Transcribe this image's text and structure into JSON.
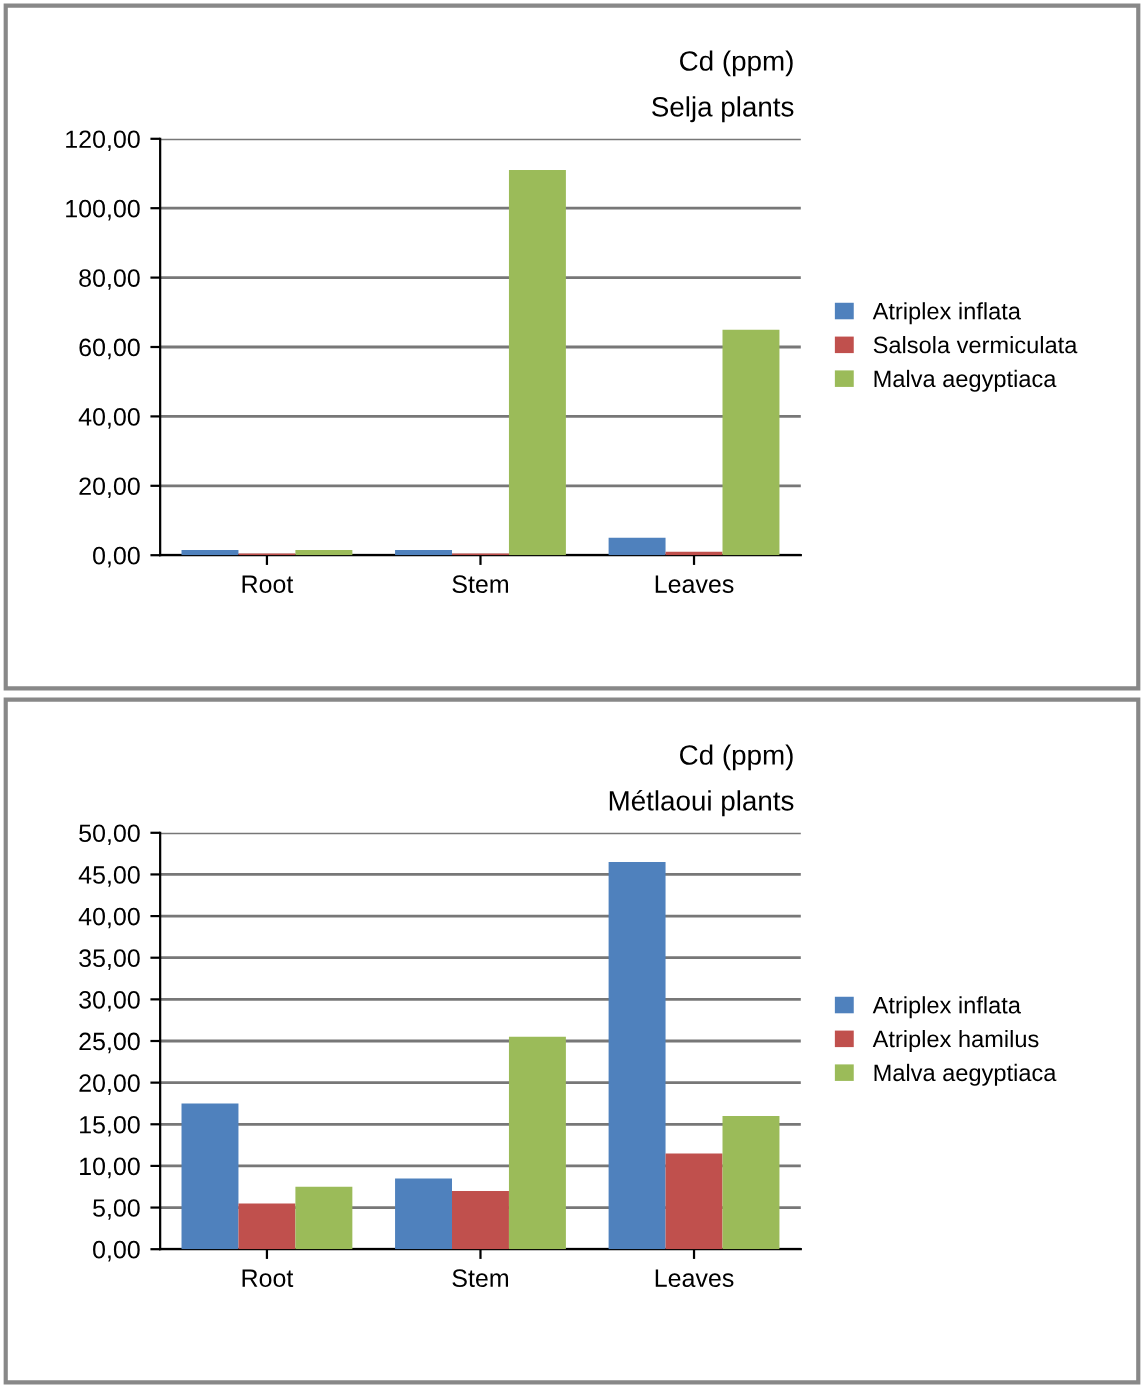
{
  "chart_data": [
    {
      "type": "bar",
      "title": "Cd (ppm)",
      "subtitle": "Selja plants",
      "categories": [
        "Root",
        "Stem",
        "Leaves"
      ],
      "series": [
        {
          "name": "Atriplex inflata",
          "color": "#4f81bd",
          "values": [
            1.5,
            1.5,
            5
          ]
        },
        {
          "name": "Salsola vermiculata",
          "color": "#c0504d",
          "values": [
            0.5,
            0.5,
            1
          ]
        },
        {
          "name": "Malva aegyptiaca",
          "color": "#9bbb59",
          "values": [
            1.5,
            111,
            65
          ]
        }
      ],
      "ylim": [
        0,
        120
      ],
      "yticks": [
        {
          "value": 0,
          "label": "0,00"
        },
        {
          "value": 20,
          "label": "20,00"
        },
        {
          "value": 40,
          "label": "40,00"
        },
        {
          "value": 60,
          "label": "60,00"
        },
        {
          "value": 80,
          "label": "80,00"
        },
        {
          "value": 100,
          "label": "100,00"
        },
        {
          "value": 120,
          "label": "120,00"
        }
      ],
      "grid": "y",
      "legend": "right"
    },
    {
      "type": "bar",
      "title": "Cd (ppm)",
      "subtitle": "Métlaoui plants",
      "categories": [
        "Root",
        "Stem",
        "Leaves"
      ],
      "series": [
        {
          "name": "Atriplex inflata",
          "color": "#4f81bd",
          "values": [
            17.5,
            8.5,
            46.5
          ]
        },
        {
          "name": "Atriplex hamilus",
          "color": "#c0504d",
          "values": [
            5.5,
            7,
            11.5
          ]
        },
        {
          "name": "Malva aegyptiaca",
          "color": "#9bbb59",
          "values": [
            7.5,
            25.5,
            16
          ]
        }
      ],
      "ylim": [
        0,
        50
      ],
      "yticks": [
        {
          "value": 0,
          "label": "0,00"
        },
        {
          "value": 5,
          "label": "5,00"
        },
        {
          "value": 10,
          "label": "10,00"
        },
        {
          "value": 15,
          "label": "15,00"
        },
        {
          "value": 20,
          "label": "20,00"
        },
        {
          "value": 25,
          "label": "25,00"
        },
        {
          "value": 30,
          "label": "30,00"
        },
        {
          "value": 35,
          "label": "35,00"
        },
        {
          "value": 40,
          "label": "40,00"
        },
        {
          "value": 45,
          "label": "45,00"
        },
        {
          "value": 50,
          "label": "50,00"
        }
      ],
      "grid": "y",
      "legend": "right"
    }
  ]
}
